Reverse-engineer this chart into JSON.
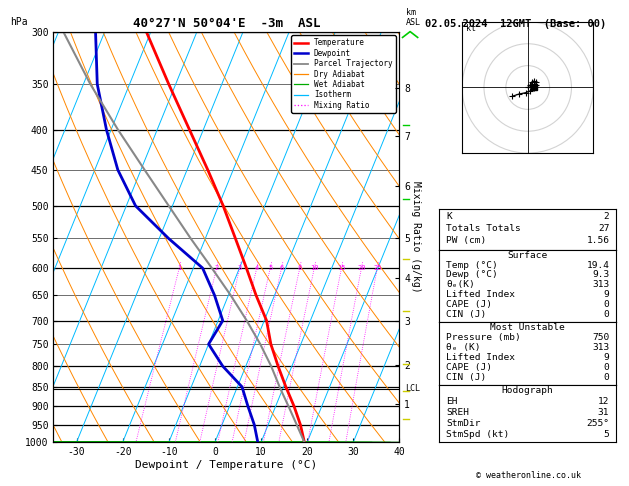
{
  "title": "40°27'N 50°04'E  -3m  ASL",
  "date_title": "02.05.2024  12GMT  (Base: 00)",
  "xlabel": "Dewpoint / Temperature (°C)",
  "ylabel_right": "Mixing Ratio (g/kg)",
  "copyright": "© weatheronline.co.uk",
  "xlim": [
    -35,
    40
  ],
  "skew_factor": 30,
  "pressure_levels": [
    300,
    350,
    400,
    450,
    500,
    550,
    600,
    650,
    700,
    750,
    800,
    850,
    900,
    950,
    1000
  ],
  "km_labels": [
    1,
    2,
    3,
    4,
    5,
    6,
    7,
    8
  ],
  "km_pressures": [
    895,
    797,
    700,
    618,
    549,
    472,
    408,
    354
  ],
  "lcl_pressure": 855,
  "temp_profile": {
    "pressure": [
      1000,
      950,
      900,
      850,
      800,
      750,
      700,
      650,
      600,
      550,
      500,
      450,
      400,
      350,
      300
    ],
    "temp": [
      19.4,
      17.0,
      14.0,
      10.5,
      7.0,
      3.5,
      0.5,
      -4.0,
      -8.5,
      -13.5,
      -19.0,
      -25.5,
      -33.0,
      -41.5,
      -51.0
    ]
  },
  "dewp_profile": {
    "pressure": [
      1000,
      950,
      900,
      850,
      800,
      750,
      700,
      650,
      600,
      550,
      500,
      450,
      400,
      350,
      300
    ],
    "temp": [
      9.3,
      7.0,
      4.0,
      1.0,
      -5.0,
      -10.0,
      -9.0,
      -13.0,
      -18.0,
      -28.0,
      -38.0,
      -45.0,
      -51.0,
      -57.0,
      -62.0
    ]
  },
  "parcel_profile": {
    "pressure": [
      1000,
      950,
      900,
      855,
      800,
      750,
      700,
      650,
      600,
      550,
      500,
      450,
      400,
      350,
      300
    ],
    "temp": [
      19.4,
      16.2,
      12.8,
      9.5,
      5.5,
      1.2,
      -3.8,
      -9.5,
      -16.0,
      -23.2,
      -30.8,
      -39.2,
      -48.5,
      -58.5,
      -69.0
    ]
  },
  "colors": {
    "temperature": "#ff0000",
    "dewpoint": "#0000cc",
    "parcel": "#888888",
    "dry_adiabat": "#ff8800",
    "wet_adiabat": "#00aa00",
    "isotherm": "#00bbff",
    "mixing_ratio": "#ff00ff",
    "background": "#ffffff"
  },
  "ws_values": [
    1,
    2,
    3,
    4,
    5,
    6,
    8,
    10,
    15,
    20,
    25
  ],
  "hodo_trace_u": [
    0,
    0.5,
    1.0,
    1.5,
    1.8,
    2.0,
    1.5,
    0.5,
    -0.5,
    -2.0,
    -3.5
  ],
  "hodo_trace_v": [
    0,
    0.5,
    1.2,
    1.5,
    1.2,
    0.5,
    -0.2,
    -0.8,
    -1.2,
    -1.5,
    -2.0
  ],
  "stats": {
    "K": 2,
    "Totals_Totals": 27,
    "PW_cm": 1.56,
    "Surface_Temp": 19.4,
    "Surface_Dewp": 9.3,
    "Surface_ThetaE": 313,
    "Surface_LI": 9,
    "Surface_CAPE": 0,
    "Surface_CIN": 0,
    "MU_Pressure": 750,
    "MU_ThetaE": 313,
    "MU_LI": 9,
    "MU_CAPE": 0,
    "MU_CIN": 0,
    "EH": 12,
    "SREH": 31,
    "StmDir": "255°",
    "StmSpd_kt": 5
  },
  "wind_chevrons": [
    {
      "pressure": 300,
      "color": "#00cc00",
      "type": "up"
    },
    {
      "pressure": 395,
      "color": "#00cc00",
      "type": "corner_up"
    },
    {
      "pressure": 490,
      "color": "#00cc00",
      "type": "corner_up"
    },
    {
      "pressure": 585,
      "color": "#cccc00",
      "type": "corner_down"
    },
    {
      "pressure": 680,
      "color": "#cccc00",
      "type": "corner_down"
    },
    {
      "pressure": 795,
      "color": "#cccc00",
      "type": "corner_down"
    },
    {
      "pressure": 860,
      "color": "#cccc00",
      "type": "corner_down"
    },
    {
      "pressure": 935,
      "color": "#cccc00",
      "type": "corner_down"
    }
  ]
}
